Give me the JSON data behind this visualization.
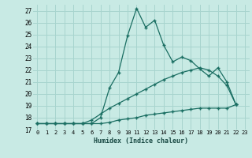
{
  "xlabel": "Humidex (Indice chaleur)",
  "background_color": "#c8eae4",
  "grid_color": "#a8d4ce",
  "line_color": "#1a6e62",
  "xlim": [
    -0.5,
    23.5
  ],
  "ylim": [
    17,
    27.5
  ],
  "yticks": [
    17,
    18,
    19,
    20,
    21,
    22,
    23,
    24,
    25,
    26,
    27
  ],
  "xticks": [
    0,
    1,
    2,
    3,
    4,
    5,
    6,
    7,
    8,
    9,
    10,
    11,
    12,
    13,
    14,
    15,
    16,
    17,
    18,
    19,
    20,
    21,
    22,
    23
  ],
  "line1_x": [
    0,
    1,
    2,
    3,
    4,
    5,
    6,
    7,
    8,
    9,
    10,
    11,
    12,
    13,
    14,
    15,
    16,
    17,
    18,
    19,
    20,
    21,
    22
  ],
  "line1_y": [
    17.5,
    17.5,
    17.5,
    17.5,
    17.5,
    17.5,
    17.5,
    18.0,
    20.5,
    21.8,
    24.9,
    27.2,
    25.6,
    26.2,
    24.1,
    22.7,
    23.1,
    22.8,
    22.1,
    21.5,
    22.2,
    21.0,
    19.1
  ],
  "line2_x": [
    0,
    1,
    2,
    3,
    4,
    5,
    6,
    7,
    8,
    9,
    10,
    11,
    12,
    13,
    14,
    15,
    16,
    17,
    18,
    19,
    20,
    21,
    22
  ],
  "line2_y": [
    17.5,
    17.5,
    17.5,
    17.5,
    17.5,
    17.5,
    17.8,
    18.3,
    18.8,
    19.2,
    19.6,
    20.0,
    20.4,
    20.8,
    21.2,
    21.5,
    21.8,
    22.0,
    22.2,
    22.0,
    21.5,
    20.7,
    19.1
  ],
  "line3_x": [
    0,
    1,
    2,
    3,
    4,
    5,
    6,
    7,
    8,
    9,
    10,
    11,
    12,
    13,
    14,
    15,
    16,
    17,
    18,
    19,
    20,
    21,
    22
  ],
  "line3_y": [
    17.5,
    17.5,
    17.5,
    17.5,
    17.5,
    17.5,
    17.5,
    17.5,
    17.6,
    17.8,
    17.9,
    18.0,
    18.2,
    18.3,
    18.4,
    18.5,
    18.6,
    18.7,
    18.8,
    18.8,
    18.8,
    18.8,
    19.1
  ]
}
